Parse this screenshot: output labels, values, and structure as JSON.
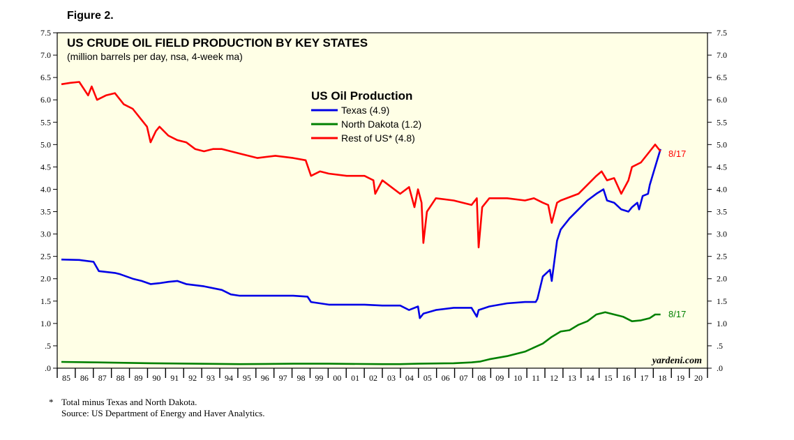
{
  "figure_label": "Figure 2.",
  "chart_data": {
    "type": "line",
    "title": "US CRUDE OIL FIELD PRODUCTION BY KEY STATES",
    "subtitle": "(million barrels per day, nsa, 4-week ma)",
    "legend_title": "US Oil Production",
    "legend": [
      "Texas (4.9)",
      "North Dakota (1.2)",
      "Rest of US* (4.8)"
    ],
    "end_labels": {
      "rest_of_us": "8/17",
      "north_dakota": "8/17"
    },
    "watermark": "yardeni.com",
    "ylim": [
      0,
      7.5
    ],
    "xlim": [
      1985,
      2021
    ],
    "y_ticks": [
      ".0",
      ".5",
      "1.0",
      "1.5",
      "2.0",
      "2.5",
      "3.0",
      "3.5",
      "4.0",
      "4.5",
      "5.0",
      "5.5",
      "6.0",
      "6.5",
      "7.0",
      "7.5"
    ],
    "x_ticks": [
      "85",
      "86",
      "87",
      "88",
      "89",
      "90",
      "91",
      "92",
      "93",
      "94",
      "95",
      "96",
      "97",
      "98",
      "99",
      "00",
      "01",
      "02",
      "03",
      "04",
      "05",
      "06",
      "07",
      "08",
      "09",
      "10",
      "11",
      "12",
      "13",
      "14",
      "15",
      "16",
      "17",
      "18",
      "19",
      "20"
    ],
    "series": [
      {
        "name": "Texas",
        "color": "#0000e6",
        "x": [
          1985,
          1986,
          1986.8,
          1987.1,
          1988,
          1988.3,
          1989,
          1989.5,
          1990,
          1990.5,
          1991,
          1991.5,
          1992,
          1993,
          1994,
          1994.5,
          1995,
          1996,
          1997,
          1998,
          1998.8,
          1999,
          2000,
          2001,
          2002,
          2003,
          2004,
          2004.5,
          2005,
          2005.1,
          2005.3,
          2006,
          2007,
          2008,
          2008.3,
          2008.4,
          2009,
          2010,
          2011,
          2011.6,
          2011.7,
          2012,
          2012.4,
          2012.5,
          2012.8,
          2013,
          2013.5,
          2014,
          2014.5,
          2015,
          2015.4,
          2015.6,
          2016,
          2016.4,
          2016.8,
          2017,
          2017.3,
          2017.4,
          2017.6,
          2017.9,
          2018,
          2018.3,
          2018.6
        ],
        "y": [
          2.43,
          2.42,
          2.38,
          2.17,
          2.13,
          2.1,
          2.0,
          1.95,
          1.88,
          1.9,
          1.93,
          1.95,
          1.88,
          1.83,
          1.75,
          1.65,
          1.62,
          1.62,
          1.62,
          1.62,
          1.6,
          1.48,
          1.42,
          1.42,
          1.42,
          1.4,
          1.4,
          1.3,
          1.38,
          1.12,
          1.22,
          1.3,
          1.35,
          1.35,
          1.15,
          1.3,
          1.38,
          1.45,
          1.48,
          1.48,
          1.55,
          2.05,
          2.2,
          1.95,
          2.85,
          3.1,
          3.35,
          3.55,
          3.75,
          3.9,
          4.0,
          3.75,
          3.7,
          3.55,
          3.5,
          3.6,
          3.7,
          3.55,
          3.85,
          3.9,
          4.1,
          4.5,
          4.9
        ]
      },
      {
        "name": "North Dakota",
        "color": "#008000",
        "x": [
          1985,
          1987,
          1990,
          1995,
          1998,
          2000,
          2003,
          2004,
          2005,
          2007,
          2008,
          2008.5,
          2009,
          2010,
          2011,
          2012,
          2012.5,
          2013,
          2013.5,
          2014,
          2014.5,
          2015,
          2015.5,
          2016,
          2016.5,
          2017,
          2017.5,
          2018,
          2018.3,
          2018.6
        ],
        "y": [
          0.14,
          0.13,
          0.11,
          0.09,
          0.1,
          0.1,
          0.09,
          0.09,
          0.1,
          0.11,
          0.13,
          0.15,
          0.2,
          0.27,
          0.37,
          0.55,
          0.7,
          0.82,
          0.85,
          0.97,
          1.05,
          1.2,
          1.25,
          1.2,
          1.15,
          1.05,
          1.07,
          1.12,
          1.2,
          1.2
        ]
      },
      {
        "name": "Rest of US*",
        "color": "#ff0000",
        "x": [
          1985,
          1985.5,
          1986,
          1986.5,
          1986.7,
          1987,
          1987.5,
          1988,
          1988.5,
          1989,
          1989.5,
          1989.8,
          1990,
          1990.3,
          1990.5,
          1991,
          1991.5,
          1992,
          1992.5,
          1993,
          1993.5,
          1994,
          1995,
          1996,
          1997,
          1998,
          1998.7,
          1999,
          1999.5,
          2000,
          2001,
          2002,
          2002.5,
          2002.6,
          2003,
          2004,
          2004.5,
          2004.8,
          2005,
          2005.2,
          2005.3,
          2005.5,
          2006,
          2007,
          2008,
          2008.3,
          2008.4,
          2008.6,
          2009,
          2010,
          2011,
          2011.5,
          2012,
          2012.3,
          2012.5,
          2012.8,
          2013,
          2014,
          2014.5,
          2015,
          2015.3,
          2015.6,
          2016,
          2016.4,
          2016.8,
          2017,
          2017.5,
          2018,
          2018.3,
          2018.6
        ],
        "y": [
          6.35,
          6.38,
          6.4,
          6.1,
          6.3,
          6.0,
          6.1,
          6.15,
          5.9,
          5.8,
          5.55,
          5.4,
          5.05,
          5.3,
          5.4,
          5.2,
          5.1,
          5.05,
          4.9,
          4.85,
          4.9,
          4.9,
          4.8,
          4.7,
          4.75,
          4.7,
          4.65,
          4.3,
          4.4,
          4.35,
          4.3,
          4.3,
          4.2,
          3.9,
          4.2,
          3.9,
          4.05,
          3.6,
          4.0,
          3.7,
          2.8,
          3.5,
          3.8,
          3.75,
          3.65,
          3.8,
          2.7,
          3.6,
          3.8,
          3.8,
          3.75,
          3.8,
          3.7,
          3.65,
          3.25,
          3.7,
          3.75,
          3.9,
          4.1,
          4.3,
          4.4,
          4.2,
          4.25,
          3.9,
          4.2,
          4.5,
          4.6,
          4.85,
          5.0,
          4.85
        ]
      }
    ]
  },
  "footnote_mark": "*",
  "footnote": "Total minus Texas and North Dakota.",
  "source": "Source: US Department of Energy and Haver Analytics."
}
